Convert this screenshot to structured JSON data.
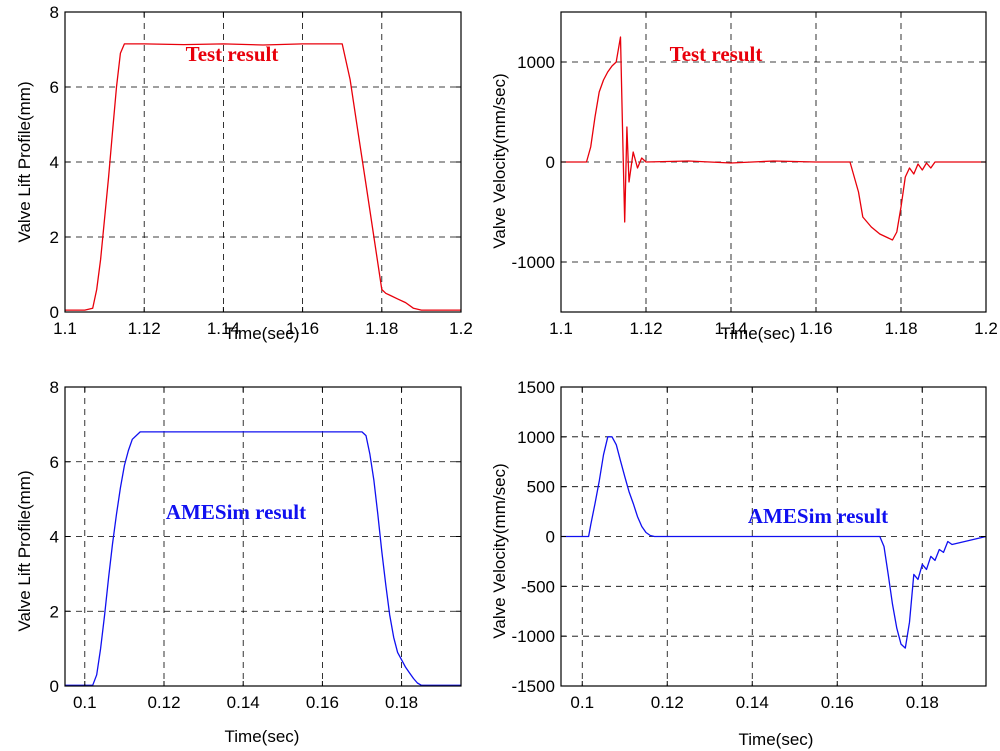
{
  "chart_data": [
    {
      "type": "line",
      "xlabel": "Time(sec)",
      "ylabel": "Valve Lift Profile(mm)",
      "xlim": [
        1.1,
        1.2
      ],
      "ylim": [
        0,
        8
      ],
      "xticks": [
        1.1,
        1.12,
        1.14,
        1.16,
        1.18,
        1.2
      ],
      "xtick_labels": [
        "1.1",
        "1.12",
        "1.14",
        "1.16",
        "1.18",
        "1.2"
      ],
      "yticks": [
        0,
        2,
        4,
        6,
        8
      ],
      "ytick_labels": [
        "0",
        "2",
        "4",
        "6",
        "8"
      ],
      "grid": true,
      "annotation": "Test result",
      "color": "#e8000b",
      "series": [
        {
          "x": [
            1.1,
            1.105,
            1.107,
            1.108,
            1.109,
            1.11,
            1.111,
            1.112,
            1.113,
            1.114,
            1.115,
            1.116,
            1.12,
            1.13,
            1.14,
            1.15,
            1.16,
            1.168,
            1.17,
            1.172,
            1.174,
            1.176,
            1.178,
            1.18,
            1.181,
            1.182,
            1.184,
            1.186,
            1.188,
            1.19,
            1.2
          ],
          "y": [
            0.05,
            0.05,
            0.1,
            0.6,
            1.4,
            2.5,
            3.6,
            4.8,
            6.0,
            6.9,
            7.15,
            7.15,
            7.15,
            7.13,
            7.15,
            7.12,
            7.15,
            7.15,
            7.15,
            6.2,
            4.8,
            3.4,
            2.0,
            0.6,
            0.5,
            0.45,
            0.35,
            0.25,
            0.1,
            0.05,
            0.05
          ]
        }
      ]
    },
    {
      "type": "line",
      "xlabel": "Time(sec)",
      "ylabel": "Valve Velocity(mm/sec)",
      "xlim": [
        1.1,
        1.2
      ],
      "ylim": [
        -1500,
        1500
      ],
      "xticks": [
        1.1,
        1.12,
        1.14,
        1.16,
        1.18,
        1.2
      ],
      "xtick_labels": [
        "1.1",
        "1.12",
        "1.14",
        "1.16",
        "1.18",
        "1.2"
      ],
      "yticks": [
        -1000,
        0,
        1000
      ],
      "ytick_labels": [
        "-1000",
        "0",
        "1000"
      ],
      "grid": true,
      "annotation": "Test result",
      "color": "#e8000b",
      "series": [
        {
          "x": [
            1.1,
            1.106,
            1.107,
            1.108,
            1.109,
            1.11,
            1.111,
            1.112,
            1.113,
            1.114,
            1.1145,
            1.115,
            1.1155,
            1.116,
            1.117,
            1.118,
            1.119,
            1.12,
            1.13,
            1.14,
            1.15,
            1.16,
            1.168,
            1.17,
            1.171,
            1.173,
            1.175,
            1.177,
            1.178,
            1.179,
            1.18,
            1.181,
            1.182,
            1.183,
            1.184,
            1.185,
            1.186,
            1.187,
            1.188,
            1.19,
            1.2
          ],
          "y": [
            0,
            0,
            150,
            450,
            700,
            820,
            900,
            960,
            1000,
            1250,
            300,
            -600,
            350,
            -200,
            100,
            -60,
            40,
            0,
            10,
            -10,
            10,
            0,
            0,
            -300,
            -550,
            -650,
            -720,
            -760,
            -780,
            -700,
            -450,
            -150,
            -60,
            -120,
            -20,
            -80,
            -10,
            -60,
            0,
            0,
            0
          ]
        }
      ]
    },
    {
      "type": "line",
      "xlabel": "Time(sec)",
      "ylabel": "Valve Lift Profile(mm)",
      "xlim": [
        0.095,
        0.195
      ],
      "ylim": [
        0,
        8
      ],
      "xticks": [
        0.1,
        0.12,
        0.14,
        0.16,
        0.18
      ],
      "xtick_labels": [
        "0.1",
        "0.12",
        "0.14",
        "0.16",
        "0.18"
      ],
      "yticks": [
        0,
        2,
        4,
        6,
        8
      ],
      "ytick_labels": [
        "0",
        "2",
        "4",
        "6",
        "8"
      ],
      "grid": true,
      "annotation": "AMESim result",
      "color": "#1010f0",
      "series": [
        {
          "x": [
            0.095,
            0.102,
            0.103,
            0.104,
            0.105,
            0.106,
            0.107,
            0.108,
            0.109,
            0.11,
            0.111,
            0.112,
            0.114,
            0.12,
            0.14,
            0.16,
            0.17,
            0.171,
            0.172,
            0.173,
            0.174,
            0.175,
            0.176,
            0.177,
            0.178,
            0.179,
            0.18,
            0.181,
            0.182,
            0.183,
            0.184,
            0.185,
            0.195
          ],
          "y": [
            0.02,
            0.02,
            0.3,
            1.0,
            1.9,
            2.9,
            3.8,
            4.6,
            5.3,
            5.9,
            6.3,
            6.6,
            6.8,
            6.8,
            6.8,
            6.8,
            6.8,
            6.7,
            6.2,
            5.5,
            4.6,
            3.6,
            2.7,
            1.9,
            1.3,
            0.9,
            0.7,
            0.5,
            0.35,
            0.2,
            0.08,
            0.02,
            0.02
          ]
        }
      ]
    },
    {
      "type": "line",
      "xlabel": "Time(sec)",
      "ylabel": "Valve Velocity(mm/sec)",
      "xlim": [
        0.095,
        0.195
      ],
      "ylim": [
        -1500,
        1500
      ],
      "xticks": [
        0.1,
        0.12,
        0.14,
        0.16,
        0.18
      ],
      "xtick_labels": [
        "0.1",
        "0.12",
        "0.14",
        "0.16",
        "0.18"
      ],
      "yticks": [
        -1500,
        -1000,
        -500,
        0,
        500,
        1000,
        1500
      ],
      "ytick_labels": [
        "-1500",
        "-1000",
        "-500",
        "0",
        "500",
        "1000",
        "1500"
      ],
      "grid": true,
      "annotation": "AMESim result",
      "color": "#1010f0",
      "series": [
        {
          "x": [
            0.095,
            0.1015,
            0.102,
            0.103,
            0.104,
            0.105,
            0.106,
            0.107,
            0.108,
            0.109,
            0.11,
            0.111,
            0.112,
            0.113,
            0.114,
            0.115,
            0.116,
            0.117,
            0.12,
            0.14,
            0.16,
            0.17,
            0.171,
            0.172,
            0.173,
            0.174,
            0.175,
            0.176,
            0.177,
            0.178,
            0.179,
            0.18,
            0.181,
            0.182,
            0.183,
            0.184,
            0.185,
            0.186,
            0.187,
            0.195
          ],
          "y": [
            0,
            0,
            120,
            330,
            560,
            820,
            1000,
            1000,
            920,
            760,
            600,
            450,
            330,
            200,
            100,
            40,
            10,
            0,
            0,
            0,
            0,
            0,
            -100,
            -380,
            -680,
            -920,
            -1080,
            -1120,
            -860,
            -380,
            -430,
            -280,
            -330,
            -200,
            -240,
            -130,
            -160,
            -50,
            -80,
            0
          ]
        }
      ]
    }
  ]
}
